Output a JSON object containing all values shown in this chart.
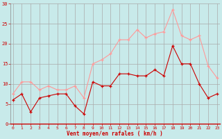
{
  "x": [
    0,
    1,
    2,
    3,
    4,
    5,
    6,
    7,
    8,
    9,
    10,
    11,
    12,
    13,
    14,
    15,
    16,
    17,
    18,
    19,
    20,
    21,
    22,
    23
  ],
  "wind_avg": [
    6,
    7.5,
    3,
    6.5,
    7,
    7.5,
    7.5,
    4.5,
    2.5,
    10.5,
    9.5,
    9.5,
    12.5,
    12.5,
    12,
    12,
    13.5,
    12,
    19.5,
    15,
    15,
    10,
    6.5,
    7.5
  ],
  "wind_gust": [
    7.5,
    10.5,
    10.5,
    8.5,
    9.5,
    8.5,
    8.5,
    9.5,
    6.5,
    15,
    16,
    17.5,
    21,
    21,
    23.5,
    21.5,
    22.5,
    23,
    28.5,
    22,
    21,
    22,
    14.5,
    11.5
  ],
  "color_avg": "#cc0000",
  "color_gust": "#ff9999",
  "bg_color": "#c8eaea",
  "grid_color": "#aaaaaa",
  "xlabel": "Vent moyen/en rafales ( km/h )",
  "xlabel_color": "#cc0000",
  "tick_color": "#cc0000",
  "ylim": [
    0,
    30
  ],
  "yticks": [
    0,
    5,
    10,
    15,
    20,
    25,
    30
  ],
  "xlim": [
    -0.3,
    23.3
  ],
  "figsize": [
    3.2,
    2.0
  ],
  "dpi": 100
}
